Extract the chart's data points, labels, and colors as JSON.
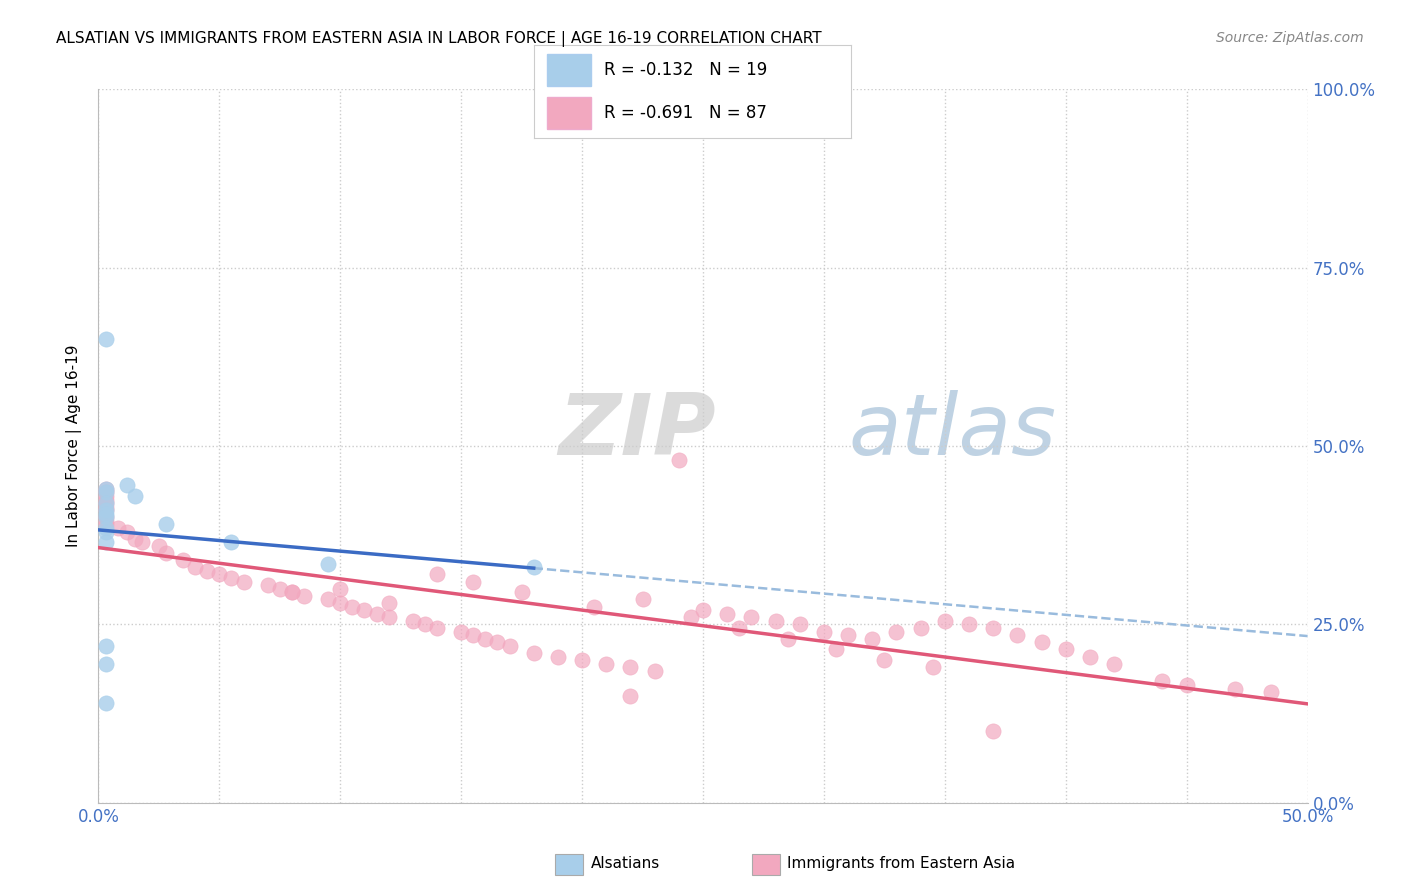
{
  "title": "ALSATIAN VS IMMIGRANTS FROM EASTERN ASIA IN LABOR FORCE | AGE 16-19 CORRELATION CHART",
  "source": "Source: ZipAtlas.com",
  "ylabel": "In Labor Force | Age 16-19",
  "legend_blue_r": "R = -0.132",
  "legend_blue_n": "N = 19",
  "legend_pink_r": "R = -0.691",
  "legend_pink_n": "N = 87",
  "legend_blue_label": "Alsatians",
  "legend_pink_label": "Immigrants from Eastern Asia",
  "watermark_zip": "ZIP",
  "watermark_atlas": "atlas",
  "blue_color": "#A8CEEA",
  "pink_color": "#F2A8BF",
  "blue_line_color": "#3B6BC4",
  "pink_line_color": "#E05878",
  "dashed_color": "#99BBDD",
  "blue_scatter_x": [
    0.3,
    0.3,
    0.3,
    0.3,
    0.3,
    0.3,
    0.3,
    0.3,
    0.3,
    1.2,
    1.5,
    0.3,
    0.3,
    2.8,
    5.5,
    0.3,
    9.5,
    0.3,
    18.0
  ],
  "blue_scatter_y": [
    44.0,
    43.5,
    42.0,
    41.0,
    40.5,
    40.0,
    38.5,
    38.0,
    36.5,
    44.5,
    43.0,
    22.0,
    19.5,
    39.0,
    36.5,
    65.0,
    33.5,
    14.0,
    33.0
  ],
  "pink_scatter_x": [
    0.3,
    0.3,
    0.3,
    0.3,
    0.3,
    0.3,
    0.3,
    0.3,
    0.3,
    0.3,
    0.8,
    1.2,
    1.5,
    1.8,
    2.5,
    2.8,
    3.5,
    4.0,
    4.5,
    5.0,
    5.5,
    6.0,
    7.0,
    7.5,
    8.0,
    8.5,
    9.5,
    10.0,
    10.5,
    11.0,
    11.5,
    12.0,
    13.0,
    13.5,
    14.0,
    15.0,
    15.5,
    16.0,
    16.5,
    17.0,
    18.0,
    19.0,
    20.0,
    21.0,
    22.0,
    23.0,
    24.0,
    25.0,
    26.0,
    27.0,
    28.0,
    29.0,
    30.0,
    31.0,
    32.0,
    33.0,
    34.0,
    35.0,
    36.0,
    37.0,
    38.0,
    39.0,
    40.0,
    41.0,
    42.0,
    44.0,
    45.0,
    47.0,
    48.5,
    14.0,
    15.5,
    17.5,
    20.5,
    22.5,
    24.5,
    26.5,
    28.5,
    30.5,
    32.5,
    34.5,
    8.0,
    10.0,
    12.0,
    22.0,
    37.0
  ],
  "pink_scatter_y": [
    44.0,
    43.5,
    43.0,
    42.5,
    42.0,
    41.5,
    41.0,
    40.0,
    39.5,
    39.0,
    38.5,
    38.0,
    37.0,
    36.5,
    36.0,
    35.0,
    34.0,
    33.0,
    32.5,
    32.0,
    31.5,
    31.0,
    30.5,
    30.0,
    29.5,
    29.0,
    28.5,
    28.0,
    27.5,
    27.0,
    26.5,
    26.0,
    25.5,
    25.0,
    24.5,
    24.0,
    23.5,
    23.0,
    22.5,
    22.0,
    21.0,
    20.5,
    20.0,
    19.5,
    19.0,
    18.5,
    48.0,
    27.0,
    26.5,
    26.0,
    25.5,
    25.0,
    24.0,
    23.5,
    23.0,
    24.0,
    24.5,
    25.5,
    25.0,
    24.5,
    23.5,
    22.5,
    21.5,
    20.5,
    19.5,
    17.0,
    16.5,
    16.0,
    15.5,
    32.0,
    31.0,
    29.5,
    27.5,
    28.5,
    26.0,
    24.5,
    23.0,
    21.5,
    20.0,
    19.0,
    29.5,
    30.0,
    28.0,
    15.0,
    10.0
  ],
  "xlim": [
    0.0,
    50.0
  ],
  "ylim": [
    0.0,
    100.0
  ],
  "yticks": [
    0,
    25,
    50,
    75,
    100
  ],
  "ytick_labels": [
    "0.0%",
    "25.0%",
    "50.0%",
    "75.0%",
    "100.0%"
  ],
  "xtick_labels_show": [
    "0.0%",
    "50.0%"
  ]
}
